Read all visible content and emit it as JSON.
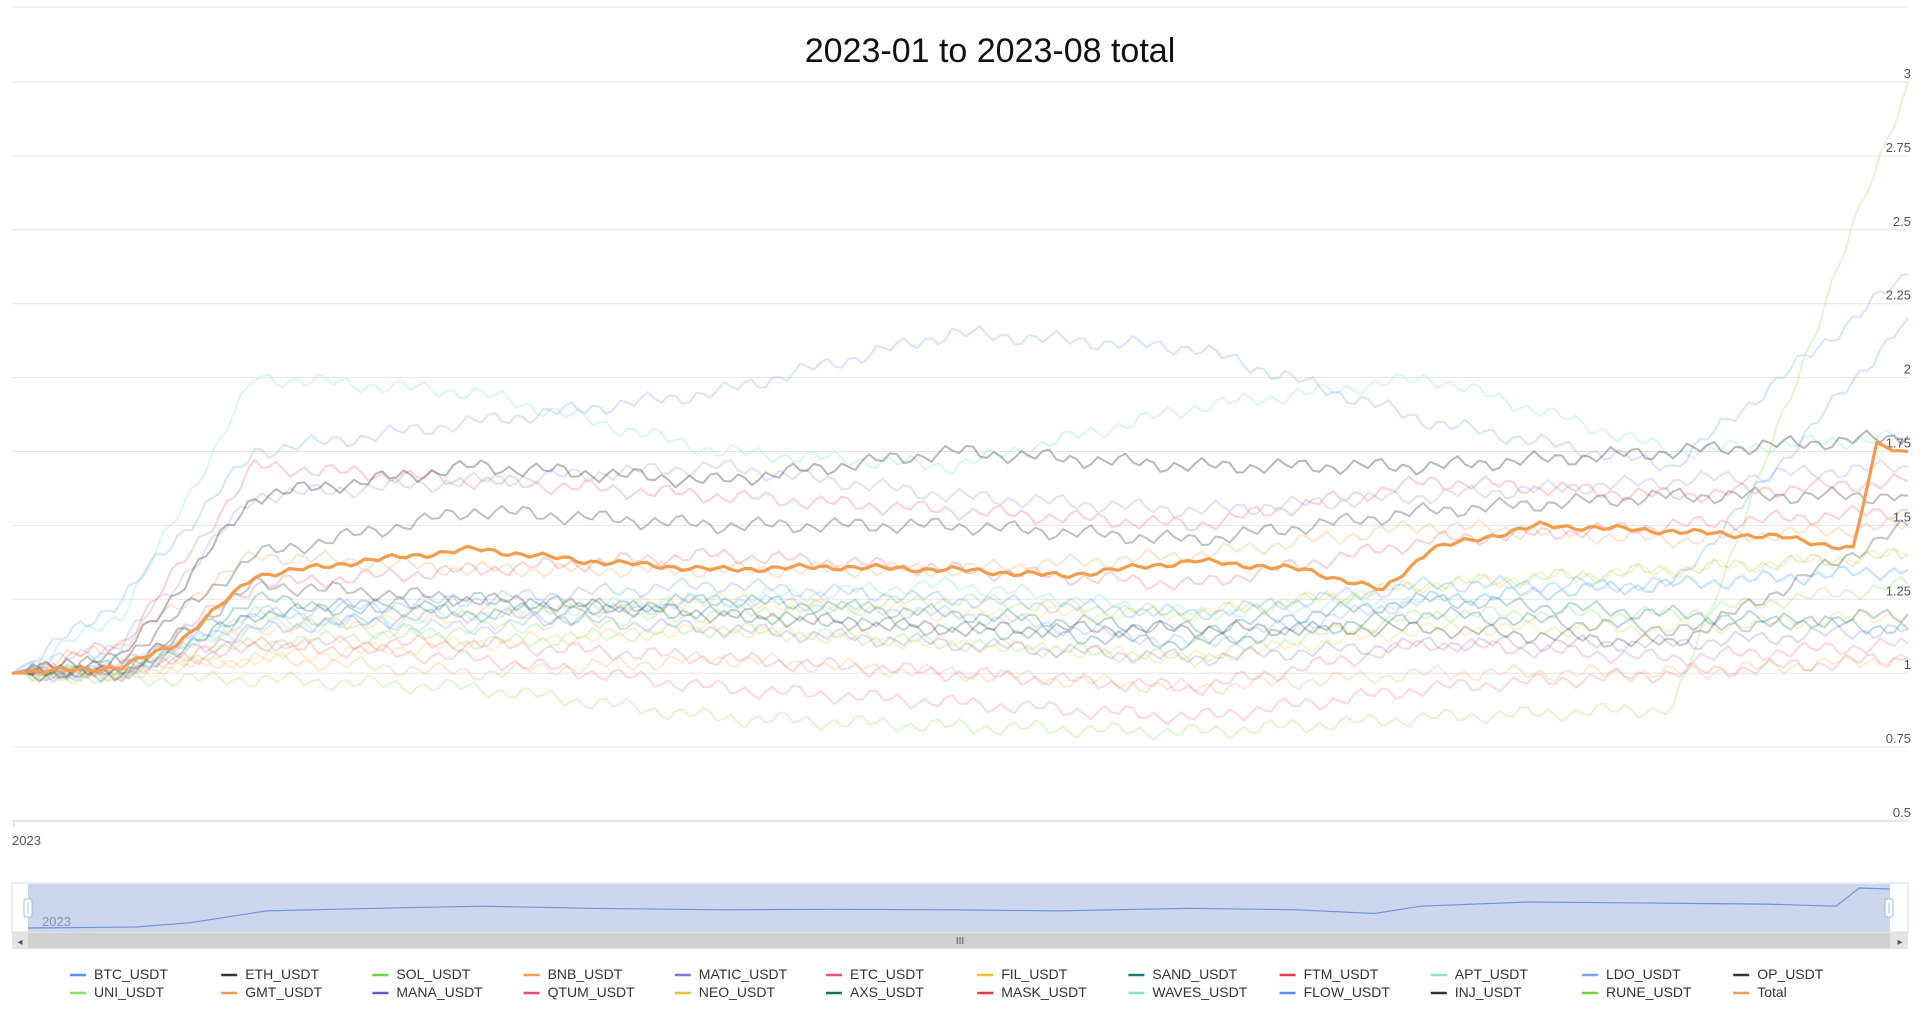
{
  "chart_data": {
    "type": "line",
    "title": "2023-01 to 2023-08 total",
    "x_axis_label": "2023",
    "y_axis": {
      "min": 0.5,
      "max": 3,
      "ticks": [
        0.5,
        0.75,
        1,
        1.25,
        1.5,
        1.75,
        2,
        2.25,
        2.5,
        2.75,
        3
      ]
    },
    "x_range": {
      "start": "2023-01-01",
      "end": "2023-08-31"
    },
    "grid": true,
    "legend_position": "bottom",
    "data_zoom": {
      "range_start_percent": 0,
      "range_end_percent": 100,
      "label": "2023",
      "handle_glyph": "III"
    },
    "highlighted_series": "Total",
    "series": [
      {
        "name": "BTC_USDT",
        "color": "#5b8ff9",
        "opacity": 0.22,
        "x": [
          "2023-01-01",
          "2023-01-15",
          "2023-02-01",
          "2023-03-01",
          "2023-04-01",
          "2023-05-01",
          "2023-06-01",
          "2023-07-01",
          "2023-08-01",
          "2023-08-31"
        ],
        "y": [
          1.0,
          1.0,
          1.2,
          1.15,
          1.25,
          1.2,
          1.1,
          1.25,
          1.3,
          1.35
        ]
      },
      {
        "name": "ETH_USDT",
        "color": "#333333",
        "opacity": 0.3,
        "x": [
          "2023-01-01",
          "2023-01-15",
          "2023-02-01",
          "2023-03-01",
          "2023-04-01",
          "2023-05-01",
          "2023-06-01",
          "2023-07-01",
          "2023-08-01",
          "2023-08-31"
        ],
        "y": [
          1.0,
          1.05,
          1.4,
          1.55,
          1.5,
          1.5,
          1.45,
          1.55,
          1.6,
          1.6
        ]
      },
      {
        "name": "SOL_USDT",
        "color": "#73d13d",
        "opacity": 0.22,
        "x": [
          "2023-01-01",
          "2023-01-15",
          "2023-02-01",
          "2023-03-01",
          "2023-04-01",
          "2023-05-01",
          "2023-06-01",
          "2023-07-01",
          "2023-08-01",
          "2023-08-31"
        ],
        "y": [
          1.0,
          1.0,
          1.2,
          1.1,
          1.15,
          1.1,
          1.05,
          1.2,
          1.2,
          1.3
        ]
      },
      {
        "name": "BNB_USDT",
        "color": "#f29c4c",
        "opacity": 0.25,
        "x": [
          "2023-01-01",
          "2023-01-15",
          "2023-02-01",
          "2023-03-01",
          "2023-04-01",
          "2023-05-01",
          "2023-06-01",
          "2023-07-01",
          "2023-08-01",
          "2023-08-31"
        ],
        "y": [
          1.0,
          1.1,
          1.4,
          1.35,
          1.35,
          1.35,
          1.4,
          1.5,
          1.45,
          1.5
        ]
      },
      {
        "name": "MATIC_USDT",
        "color": "#7b78e6",
        "opacity": 0.22,
        "x": [
          "2023-01-01",
          "2023-01-15",
          "2023-02-01",
          "2023-03-01",
          "2023-04-01",
          "2023-05-01",
          "2023-06-01",
          "2023-07-01",
          "2023-08-01",
          "2023-08-31"
        ],
        "y": [
          1.0,
          1.1,
          1.6,
          1.65,
          1.7,
          1.6,
          1.55,
          1.6,
          1.65,
          1.7
        ]
      },
      {
        "name": "ETC_USDT",
        "color": "#f4506b",
        "opacity": 0.22,
        "x": [
          "2023-01-01",
          "2023-01-15",
          "2023-02-01",
          "2023-03-01",
          "2023-04-01",
          "2023-05-01",
          "2023-06-01",
          "2023-07-01",
          "2023-08-01",
          "2023-08-31"
        ],
        "y": [
          1.0,
          1.02,
          1.1,
          1.05,
          0.95,
          0.9,
          0.85,
          0.95,
          1.0,
          1.05
        ]
      },
      {
        "name": "FIL_USDT",
        "color": "#f7c02f",
        "opacity": 0.22,
        "x": [
          "2023-01-01",
          "2023-01-15",
          "2023-02-01",
          "2023-03-01",
          "2023-04-01",
          "2023-05-01",
          "2023-06-01",
          "2023-07-01",
          "2023-08-01",
          "2023-08-31"
        ],
        "y": [
          1.0,
          1.0,
          1.05,
          1.1,
          1.15,
          1.1,
          1.05,
          1.15,
          1.15,
          1.2
        ]
      },
      {
        "name": "SAND_USDT",
        "color": "#127a7a",
        "opacity": 0.28,
        "x": [
          "2023-01-01",
          "2023-01-15",
          "2023-02-01",
          "2023-03-01",
          "2023-04-01",
          "2023-05-01",
          "2023-06-01",
          "2023-07-01",
          "2023-08-01",
          "2023-08-31"
        ],
        "y": [
          1.0,
          1.02,
          1.25,
          1.2,
          1.25,
          1.2,
          1.15,
          1.25,
          1.2,
          1.15
        ]
      },
      {
        "name": "FTM_USDT",
        "color": "#e8384f",
        "opacity": 0.22,
        "x": [
          "2023-01-01",
          "2023-01-15",
          "2023-02-01",
          "2023-03-01",
          "2023-04-01",
          "2023-05-01",
          "2023-06-01",
          "2023-07-01",
          "2023-08-01",
          "2023-08-31"
        ],
        "y": [
          1.0,
          1.1,
          1.7,
          1.65,
          1.6,
          1.55,
          1.5,
          1.65,
          1.6,
          1.65
        ]
      },
      {
        "name": "APT_USDT",
        "color": "#87e0d8",
        "opacity": 0.3,
        "x": [
          "2023-01-01",
          "2023-01-15",
          "2023-02-01",
          "2023-03-01",
          "2023-04-01",
          "2023-05-01",
          "2023-06-01",
          "2023-07-01",
          "2023-08-01",
          "2023-08-31"
        ],
        "y": [
          1.0,
          1.2,
          2.0,
          1.95,
          1.75,
          1.7,
          1.9,
          2.0,
          1.75,
          1.8
        ]
      },
      {
        "name": "LDO_USDT",
        "color": "#7aa8ed",
        "opacity": 0.3,
        "x": [
          "2023-01-01",
          "2023-01-15",
          "2023-02-01",
          "2023-03-01",
          "2023-04-01",
          "2023-05-01",
          "2023-06-01",
          "2023-07-01",
          "2023-08-01",
          "2023-08-31"
        ],
        "y": [
          1.0,
          1.25,
          1.75,
          1.85,
          1.95,
          2.15,
          2.1,
          1.85,
          1.7,
          2.35
        ]
      },
      {
        "name": "OP_USDT",
        "color": "#333333",
        "opacity": 0.35,
        "x": [
          "2023-01-01",
          "2023-01-15",
          "2023-02-01",
          "2023-03-01",
          "2023-04-01",
          "2023-05-01",
          "2023-06-01",
          "2023-07-01",
          "2023-08-01",
          "2023-08-31"
        ],
        "y": [
          1.0,
          1.05,
          1.6,
          1.7,
          1.65,
          1.75,
          1.7,
          1.7,
          1.75,
          1.8
        ]
      },
      {
        "name": "UNI_USDT",
        "color": "#95de64",
        "opacity": 0.28,
        "x": [
          "2023-01-01",
          "2023-01-15",
          "2023-02-01",
          "2023-03-01",
          "2023-04-01",
          "2023-05-01",
          "2023-06-01",
          "2023-07-01",
          "2023-08-01",
          "2023-08-31"
        ],
        "y": [
          1.0,
          0.98,
          0.98,
          0.95,
          0.85,
          0.82,
          0.8,
          0.85,
          0.88,
          3.0
        ]
      },
      {
        "name": "GMT_USDT",
        "color": "#f29c4c",
        "opacity": 0.22,
        "x": [
          "2023-01-01",
          "2023-01-15",
          "2023-02-01",
          "2023-03-01",
          "2023-04-01",
          "2023-05-01",
          "2023-06-01",
          "2023-07-01",
          "2023-08-01",
          "2023-08-31"
        ],
        "y": [
          1.0,
          1.0,
          1.05,
          1.0,
          1.05,
          1.0,
          0.95,
          1.0,
          1.0,
          1.05
        ]
      },
      {
        "name": "MANA_USDT",
        "color": "#5e5cc7",
        "opacity": 0.22,
        "x": [
          "2023-01-01",
          "2023-01-15",
          "2023-02-01",
          "2023-03-01",
          "2023-04-01",
          "2023-05-01",
          "2023-06-01",
          "2023-07-01",
          "2023-08-01",
          "2023-08-31"
        ],
        "y": [
          1.0,
          1.0,
          1.15,
          1.2,
          1.15,
          1.1,
          1.05,
          1.1,
          1.1,
          1.15
        ]
      },
      {
        "name": "QTUM_USDT",
        "color": "#e74c6f",
        "opacity": 0.22,
        "x": [
          "2023-01-01",
          "2023-01-15",
          "2023-02-01",
          "2023-03-01",
          "2023-04-01",
          "2023-05-01",
          "2023-06-01",
          "2023-07-01",
          "2023-08-01",
          "2023-08-31"
        ],
        "y": [
          1.0,
          1.0,
          1.1,
          1.1,
          1.05,
          1.0,
          0.95,
          1.1,
          1.05,
          1.1
        ]
      },
      {
        "name": "NEO_USDT",
        "color": "#f0c030",
        "opacity": 0.22,
        "x": [
          "2023-01-01",
          "2023-01-15",
          "2023-02-01",
          "2023-03-01",
          "2023-04-01",
          "2023-05-01",
          "2023-06-01",
          "2023-07-01",
          "2023-08-01",
          "2023-08-31"
        ],
        "y": [
          1.0,
          1.0,
          1.15,
          1.2,
          1.25,
          1.2,
          1.2,
          1.3,
          1.35,
          1.4
        ]
      },
      {
        "name": "AXS_USDT",
        "color": "#1a6e66",
        "opacity": 0.28,
        "x": [
          "2023-01-01",
          "2023-01-15",
          "2023-02-01",
          "2023-03-01",
          "2023-04-01",
          "2023-05-01",
          "2023-06-01",
          "2023-07-01",
          "2023-08-01",
          "2023-08-31"
        ],
        "y": [
          1.0,
          1.0,
          1.2,
          1.25,
          1.2,
          1.15,
          1.1,
          1.2,
          1.15,
          1.2
        ]
      },
      {
        "name": "MASK_USDT",
        "color": "#e8384f",
        "opacity": 0.22,
        "x": [
          "2023-01-01",
          "2023-01-15",
          "2023-02-01",
          "2023-03-01",
          "2023-04-01",
          "2023-05-01",
          "2023-06-01",
          "2023-07-01",
          "2023-08-01",
          "2023-08-31"
        ],
        "y": [
          1.0,
          1.02,
          1.3,
          1.35,
          1.4,
          1.35,
          1.3,
          1.45,
          1.5,
          1.55
        ]
      },
      {
        "name": "WAVES_USDT",
        "color": "#87e0d8",
        "opacity": 0.3,
        "x": [
          "2023-01-01",
          "2023-01-15",
          "2023-02-01",
          "2023-03-01",
          "2023-04-01",
          "2023-05-01",
          "2023-06-01",
          "2023-07-01",
          "2023-08-01",
          "2023-08-31"
        ],
        "y": [
          1.0,
          1.05,
          1.15,
          1.2,
          1.25,
          1.3,
          1.2,
          1.25,
          1.3,
          1.35
        ]
      },
      {
        "name": "FLOW_USDT",
        "color": "#5b8ff9",
        "opacity": 0.25,
        "x": [
          "2023-01-01",
          "2023-01-15",
          "2023-02-01",
          "2023-03-01",
          "2023-04-01",
          "2023-05-01",
          "2023-06-01",
          "2023-07-01",
          "2023-08-01",
          "2023-08-31"
        ],
        "y": [
          1.0,
          1.0,
          1.2,
          1.25,
          1.3,
          1.25,
          1.2,
          1.3,
          1.3,
          2.2
        ]
      },
      {
        "name": "INJ_USDT",
        "color": "#333333",
        "opacity": 0.28,
        "x": [
          "2023-01-01",
          "2023-01-15",
          "2023-02-01",
          "2023-03-01",
          "2023-04-01",
          "2023-05-01",
          "2023-06-01",
          "2023-07-01",
          "2023-08-01",
          "2023-08-31"
        ],
        "y": [
          1.0,
          1.0,
          1.3,
          1.25,
          1.2,
          1.15,
          1.15,
          1.15,
          1.1,
          1.5
        ]
      },
      {
        "name": "RUNE_USDT",
        "color": "#73d13d",
        "opacity": 0.22,
        "x": [
          "2023-01-01",
          "2023-01-15",
          "2023-02-01",
          "2023-03-01",
          "2023-04-01",
          "2023-05-01",
          "2023-06-01",
          "2023-07-01",
          "2023-08-01",
          "2023-08-31"
        ],
        "y": [
          1.0,
          1.0,
          1.1,
          1.15,
          1.2,
          1.25,
          1.2,
          1.3,
          1.35,
          1.4
        ]
      },
      {
        "name": "Total",
        "color": "#f29c4c",
        "opacity": 1.0,
        "x": [
          "2023-01-01",
          "2023-01-08",
          "2023-01-15",
          "2023-01-22",
          "2023-02-01",
          "2023-02-15",
          "2023-03-01",
          "2023-03-15",
          "2023-04-01",
          "2023-04-15",
          "2023-05-01",
          "2023-05-15",
          "2023-06-01",
          "2023-06-15",
          "2023-06-25",
          "2023-07-01",
          "2023-07-15",
          "2023-08-01",
          "2023-08-15",
          "2023-08-24",
          "2023-08-27",
          "2023-08-31"
        ],
        "y": [
          1.0,
          1.01,
          1.02,
          1.1,
          1.33,
          1.38,
          1.42,
          1.38,
          1.35,
          1.36,
          1.35,
          1.33,
          1.38,
          1.35,
          1.28,
          1.42,
          1.5,
          1.48,
          1.46,
          1.42,
          1.77,
          1.75
        ]
      }
    ]
  }
}
